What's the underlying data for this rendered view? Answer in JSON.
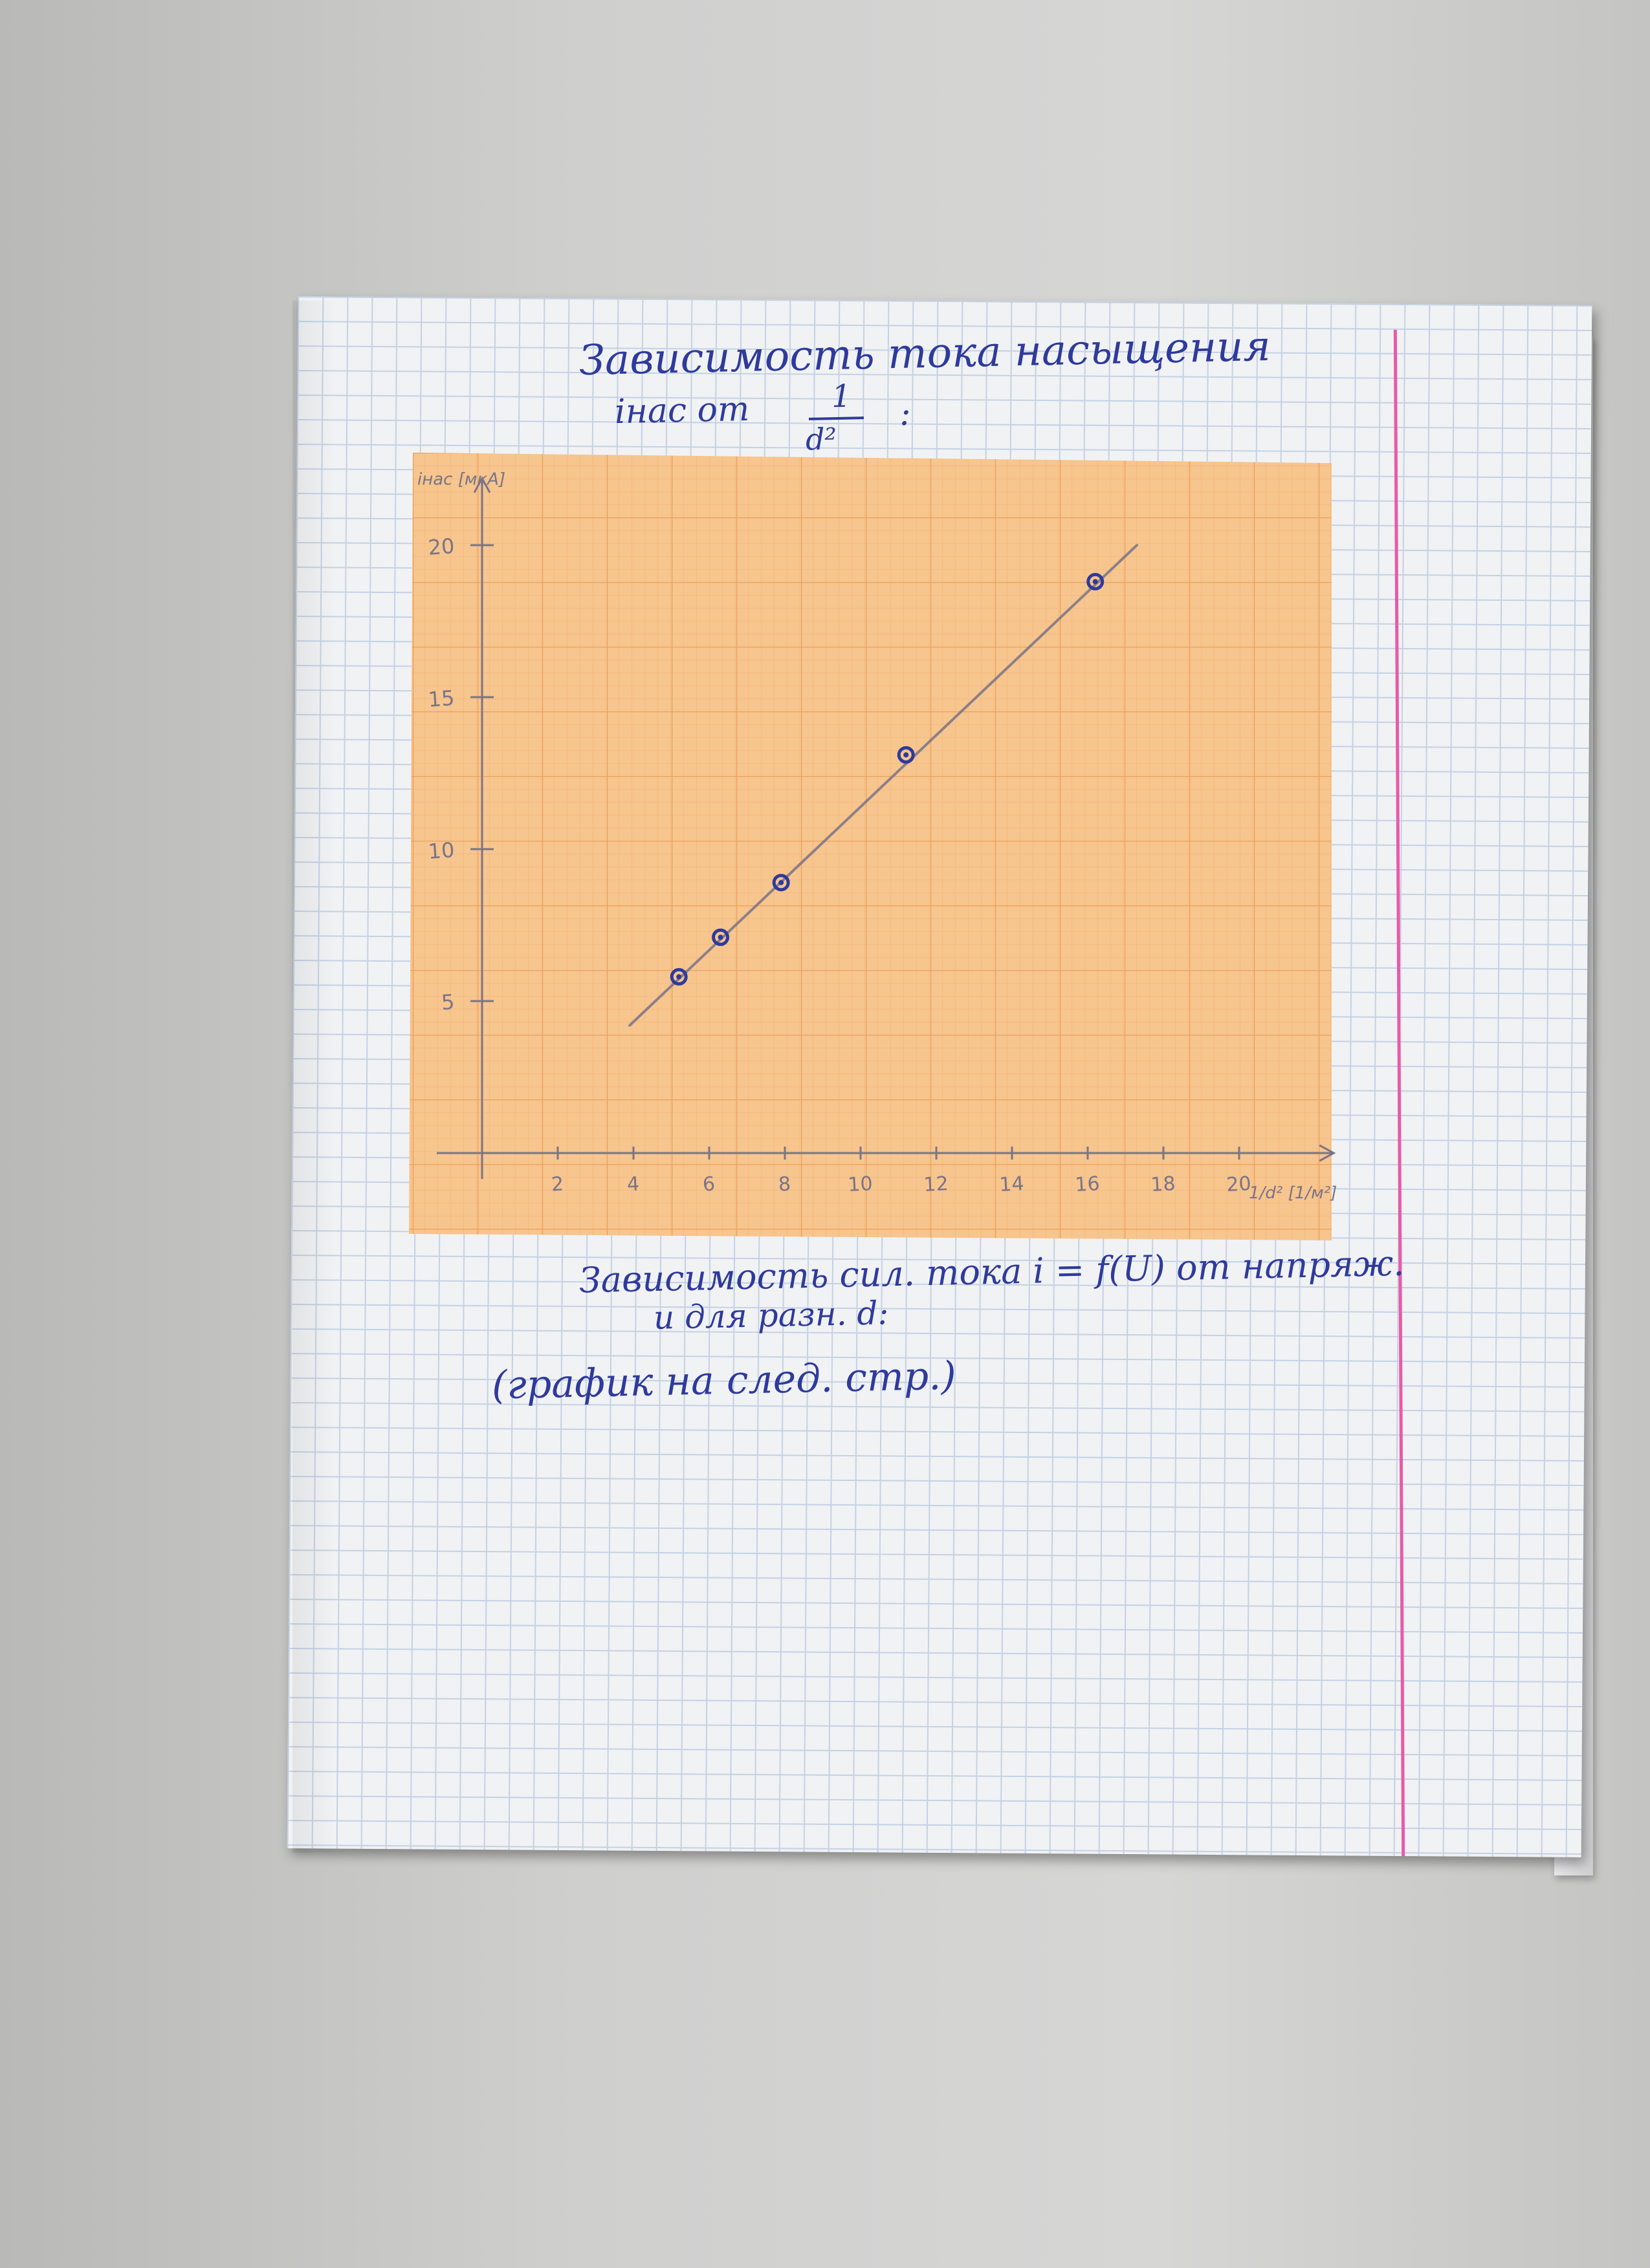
{
  "page": {
    "title_line1": "Зависимость тока насыщения",
    "title_line2": "iнас от",
    "title_fraction_num": "1",
    "title_fraction_den": "d²",
    "title_colon": ":",
    "note_line1": "Зависимость сил. тока i = f(U) от напряж.",
    "note_line2": "и для разн. d:",
    "note_line3": "(график на след. стр.)"
  },
  "colors": {
    "ink": "#2e3a9c",
    "pencil": "#7a7488",
    "graph_paper": "#f7c58e",
    "graph_grid": "#efa35a",
    "notebook_grid": "#c4d2e4",
    "margin": "#e85aa8"
  },
  "chart_data": {
    "type": "scatter",
    "xlabel": "1/d² [1/м²]",
    "ylabel": "iнас [мкА]",
    "xlim": [
      0,
      22
    ],
    "ylim": [
      0,
      20
    ],
    "x_ticks": [
      2,
      4,
      6,
      8,
      10,
      12,
      14,
      16,
      18,
      20
    ],
    "x_tick_labels": [
      "2",
      "4",
      "6",
      "8",
      "10",
      "12",
      "14",
      "16",
      "18",
      "20"
    ],
    "y_ticks": [
      5,
      10,
      15,
      20
    ],
    "y_tick_labels": [
      "5",
      "10",
      "15",
      "20"
    ],
    "grid": true,
    "series": [
      {
        "points": [
          {
            "x": 5.2,
            "y": 5.8
          },
          {
            "x": 6.3,
            "y": 7.1
          },
          {
            "x": 7.9,
            "y": 8.9
          },
          {
            "x": 11.2,
            "y": 13.1
          },
          {
            "x": 16.2,
            "y": 18.8
          }
        ]
      }
    ],
    "fit_line": {
      "x": [
        3.9,
        17.3
      ],
      "y": [
        4.2,
        20.0
      ]
    }
  }
}
